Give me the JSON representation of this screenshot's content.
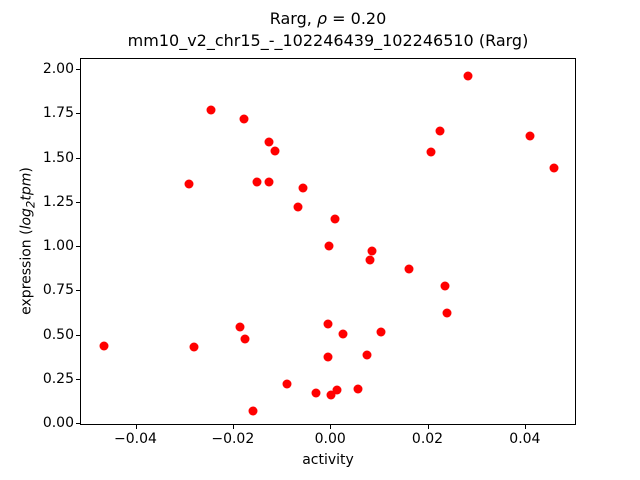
{
  "chart_data": {
    "type": "scatter",
    "title": "Rarg, ρ = 0.20",
    "title_parts": [
      "Rarg, ",
      "ρ",
      " = 0.20"
    ],
    "subtitle": "mm10_v2_chr15_-_102246439_102246510 (Rarg)",
    "xlabel": "activity",
    "ylabel": "expression (log2tpm)",
    "ylabel_parts": [
      "expression (",
      "log",
      "2",
      "tpm",
      ")"
    ],
    "marker_color": "#ff0000",
    "xlim": [
      -0.0514,
      0.0505
    ],
    "ylim": [
      -0.011,
      2.062
    ],
    "xticks": [
      -0.04,
      -0.02,
      0.0,
      0.02,
      0.04
    ],
    "xtick_labels": [
      "−0.04",
      "−0.02",
      "0.00",
      "0.02",
      "0.04"
    ],
    "yticks": [
      0.0,
      0.25,
      0.5,
      0.75,
      1.0,
      1.25,
      1.5,
      1.75,
      2.0
    ],
    "ytick_labels": [
      "0.00",
      "0.25",
      "0.50",
      "0.75",
      "1.00",
      "1.25",
      "1.50",
      "1.75",
      "2.00"
    ],
    "grid": false,
    "legend": null,
    "points": [
      [
        -0.0248,
        1.774
      ],
      [
        -0.0179,
        1.723
      ],
      [
        -0.0127,
        1.591
      ],
      [
        -0.0116,
        1.54
      ],
      [
        -0.0292,
        1.359
      ],
      [
        -0.0153,
        1.37
      ],
      [
        -0.0127,
        1.37
      ],
      [
        -0.0058,
        1.333
      ],
      [
        -0.0069,
        1.229
      ],
      [
        0.028,
        1.966
      ],
      [
        0.0223,
        1.657
      ],
      [
        0.0205,
        1.538
      ],
      [
        0.0409,
        1.628
      ],
      [
        0.0458,
        1.446
      ],
      [
        0.0007,
        1.157
      ],
      [
        -0.0004,
        1.008
      ],
      [
        0.0084,
        0.977
      ],
      [
        0.008,
        0.929
      ],
      [
        0.016,
        0.876
      ],
      [
        0.0233,
        0.779
      ],
      [
        0.0237,
        0.629
      ],
      [
        -0.0466,
        0.443
      ],
      [
        -0.0281,
        0.435
      ],
      [
        -0.0187,
        0.549
      ],
      [
        -0.0178,
        0.479
      ],
      [
        -0.0007,
        0.567
      ],
      [
        0.0024,
        0.511
      ],
      [
        0.0102,
        0.522
      ],
      [
        0.0074,
        0.39
      ],
      [
        -0.0007,
        0.38
      ],
      [
        -0.0091,
        0.226
      ],
      [
        -0.0032,
        0.177
      ],
      [
        -0.0001,
        0.163
      ],
      [
        0.0012,
        0.19
      ],
      [
        0.0054,
        0.2
      ],
      [
        -0.016,
        0.073
      ]
    ]
  }
}
